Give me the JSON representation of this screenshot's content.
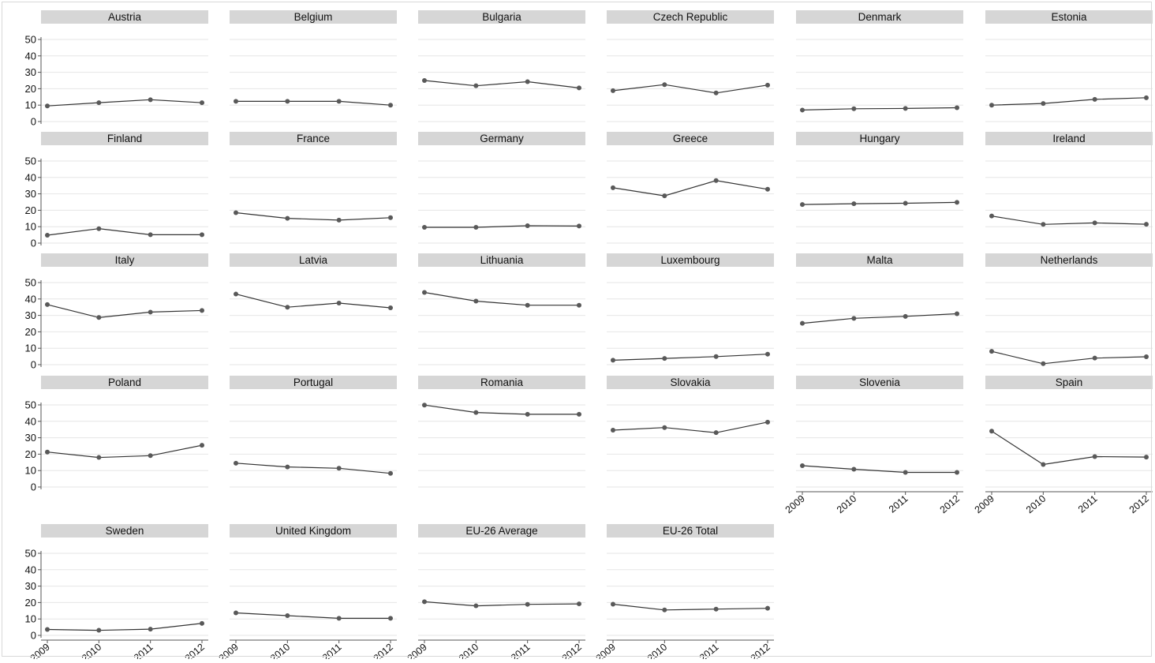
{
  "chart_data": {
    "type": "line",
    "layout": "small-multiples",
    "x": [
      "2009",
      "2010",
      "2011",
      "2012"
    ],
    "y_ticks": [
      0,
      10,
      20,
      30,
      40,
      50
    ],
    "ylim": [
      0,
      50
    ],
    "grid": true,
    "colors": {
      "line": "#333333",
      "marker": "#595959",
      "grid": "#e6e6e6",
      "strip": "#d6d6d6",
      "axis": "#555555",
      "text": "#111111"
    },
    "panels": [
      {
        "name": "Austria",
        "values": [
          9.5,
          11.5,
          13.3,
          11.5
        ]
      },
      {
        "name": "Belgium",
        "values": [
          12.3,
          12.3,
          12.3,
          10.0
        ]
      },
      {
        "name": "Bulgaria",
        "values": [
          25.0,
          21.8,
          24.3,
          20.5
        ]
      },
      {
        "name": "Czech Republic",
        "values": [
          18.8,
          22.5,
          17.4,
          22.2
        ]
      },
      {
        "name": "Denmark",
        "values": [
          7.0,
          7.8,
          8.0,
          8.4
        ]
      },
      {
        "name": "Estonia",
        "values": [
          10.0,
          11.0,
          13.5,
          14.5
        ]
      },
      {
        "name": "Finland",
        "values": [
          4.8,
          8.8,
          5.1,
          5.1
        ]
      },
      {
        "name": "France",
        "values": [
          18.5,
          15.1,
          14.0,
          15.5
        ]
      },
      {
        "name": "Germany",
        "values": [
          9.6,
          9.6,
          10.6,
          10.4
        ]
      },
      {
        "name": "Greece",
        "values": [
          33.7,
          28.8,
          38.1,
          32.8
        ]
      },
      {
        "name": "Hungary",
        "values": [
          23.5,
          24.0,
          24.3,
          24.8
        ]
      },
      {
        "name": "Ireland",
        "values": [
          16.5,
          11.4,
          12.3,
          11.5
        ]
      },
      {
        "name": "Italy",
        "values": [
          36.6,
          28.7,
          32.0,
          33.0
        ]
      },
      {
        "name": "Latvia",
        "values": [
          43.0,
          35.0,
          37.5,
          34.6
        ]
      },
      {
        "name": "Lithuania",
        "values": [
          44.0,
          38.7,
          36.2,
          36.2
        ]
      },
      {
        "name": "Luxembourg",
        "values": [
          2.7,
          3.8,
          4.9,
          6.4
        ]
      },
      {
        "name": "Malta",
        "values": [
          25.2,
          28.2,
          29.4,
          31.0
        ]
      },
      {
        "name": "Netherlands",
        "values": [
          8.1,
          0.6,
          4.0,
          4.8
        ]
      },
      {
        "name": "Poland",
        "values": [
          21.3,
          18.0,
          19.1,
          25.4
        ]
      },
      {
        "name": "Portugal",
        "values": [
          14.5,
          12.2,
          11.4,
          8.3
        ]
      },
      {
        "name": "Romania",
        "values": [
          49.9,
          45.4,
          44.3,
          44.3
        ]
      },
      {
        "name": "Slovakia",
        "values": [
          34.6,
          36.2,
          33.1,
          39.5
        ]
      },
      {
        "name": "Slovenia",
        "values": [
          13.0,
          10.8,
          8.9,
          8.9
        ]
      },
      {
        "name": "Spain",
        "values": [
          34.0,
          13.7,
          18.5,
          18.2
        ]
      },
      {
        "name": "Sweden",
        "values": [
          3.6,
          3.1,
          3.8,
          7.3
        ]
      },
      {
        "name": "United Kingdom",
        "values": [
          13.7,
          12.0,
          10.4,
          10.4
        ]
      },
      {
        "name": "EU-26 Average",
        "values": [
          20.5,
          18.0,
          18.9,
          19.2
        ]
      },
      {
        "name": "EU-26 Total",
        "values": [
          19.0,
          15.5,
          16.0,
          16.5
        ]
      }
    ]
  }
}
